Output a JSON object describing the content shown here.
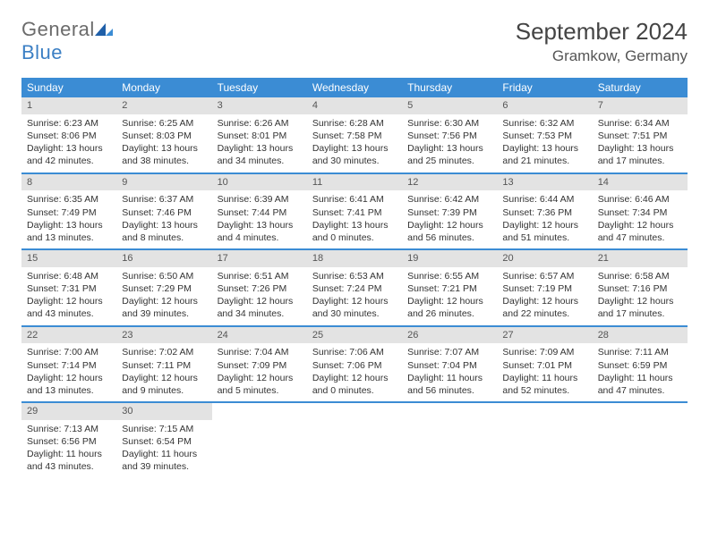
{
  "brand": {
    "name1": "General",
    "name2": "Blue"
  },
  "title": "September 2024",
  "location": "Gramkow, Germany",
  "colors": {
    "header_bg": "#3b8cd4",
    "header_text": "#ffffff",
    "daynum_bg": "#e3e3e3",
    "week_border": "#3b8cd4",
    "logo_accent": "#3b7fc4",
    "logo_gray": "#6b6b6b",
    "page_bg": "#ffffff"
  },
  "daynames": [
    "Sunday",
    "Monday",
    "Tuesday",
    "Wednesday",
    "Thursday",
    "Friday",
    "Saturday"
  ],
  "weeks": [
    [
      {
        "n": "1",
        "sr": "6:23 AM",
        "ss": "8:06 PM",
        "dl": "13 hours and 42 minutes."
      },
      {
        "n": "2",
        "sr": "6:25 AM",
        "ss": "8:03 PM",
        "dl": "13 hours and 38 minutes."
      },
      {
        "n": "3",
        "sr": "6:26 AM",
        "ss": "8:01 PM",
        "dl": "13 hours and 34 minutes."
      },
      {
        "n": "4",
        "sr": "6:28 AM",
        "ss": "7:58 PM",
        "dl": "13 hours and 30 minutes."
      },
      {
        "n": "5",
        "sr": "6:30 AM",
        "ss": "7:56 PM",
        "dl": "13 hours and 25 minutes."
      },
      {
        "n": "6",
        "sr": "6:32 AM",
        "ss": "7:53 PM",
        "dl": "13 hours and 21 minutes."
      },
      {
        "n": "7",
        "sr": "6:34 AM",
        "ss": "7:51 PM",
        "dl": "13 hours and 17 minutes."
      }
    ],
    [
      {
        "n": "8",
        "sr": "6:35 AM",
        "ss": "7:49 PM",
        "dl": "13 hours and 13 minutes."
      },
      {
        "n": "9",
        "sr": "6:37 AM",
        "ss": "7:46 PM",
        "dl": "13 hours and 8 minutes."
      },
      {
        "n": "10",
        "sr": "6:39 AM",
        "ss": "7:44 PM",
        "dl": "13 hours and 4 minutes."
      },
      {
        "n": "11",
        "sr": "6:41 AM",
        "ss": "7:41 PM",
        "dl": "13 hours and 0 minutes."
      },
      {
        "n": "12",
        "sr": "6:42 AM",
        "ss": "7:39 PM",
        "dl": "12 hours and 56 minutes."
      },
      {
        "n": "13",
        "sr": "6:44 AM",
        "ss": "7:36 PM",
        "dl": "12 hours and 51 minutes."
      },
      {
        "n": "14",
        "sr": "6:46 AM",
        "ss": "7:34 PM",
        "dl": "12 hours and 47 minutes."
      }
    ],
    [
      {
        "n": "15",
        "sr": "6:48 AM",
        "ss": "7:31 PM",
        "dl": "12 hours and 43 minutes."
      },
      {
        "n": "16",
        "sr": "6:50 AM",
        "ss": "7:29 PM",
        "dl": "12 hours and 39 minutes."
      },
      {
        "n": "17",
        "sr": "6:51 AM",
        "ss": "7:26 PM",
        "dl": "12 hours and 34 minutes."
      },
      {
        "n": "18",
        "sr": "6:53 AM",
        "ss": "7:24 PM",
        "dl": "12 hours and 30 minutes."
      },
      {
        "n": "19",
        "sr": "6:55 AM",
        "ss": "7:21 PM",
        "dl": "12 hours and 26 minutes."
      },
      {
        "n": "20",
        "sr": "6:57 AM",
        "ss": "7:19 PM",
        "dl": "12 hours and 22 minutes."
      },
      {
        "n": "21",
        "sr": "6:58 AM",
        "ss": "7:16 PM",
        "dl": "12 hours and 17 minutes."
      }
    ],
    [
      {
        "n": "22",
        "sr": "7:00 AM",
        "ss": "7:14 PM",
        "dl": "12 hours and 13 minutes."
      },
      {
        "n": "23",
        "sr": "7:02 AM",
        "ss": "7:11 PM",
        "dl": "12 hours and 9 minutes."
      },
      {
        "n": "24",
        "sr": "7:04 AM",
        "ss": "7:09 PM",
        "dl": "12 hours and 5 minutes."
      },
      {
        "n": "25",
        "sr": "7:06 AM",
        "ss": "7:06 PM",
        "dl": "12 hours and 0 minutes."
      },
      {
        "n": "26",
        "sr": "7:07 AM",
        "ss": "7:04 PM",
        "dl": "11 hours and 56 minutes."
      },
      {
        "n": "27",
        "sr": "7:09 AM",
        "ss": "7:01 PM",
        "dl": "11 hours and 52 minutes."
      },
      {
        "n": "28",
        "sr": "7:11 AM",
        "ss": "6:59 PM",
        "dl": "11 hours and 47 minutes."
      }
    ],
    [
      {
        "n": "29",
        "sr": "7:13 AM",
        "ss": "6:56 PM",
        "dl": "11 hours and 43 minutes."
      },
      {
        "n": "30",
        "sr": "7:15 AM",
        "ss": "6:54 PM",
        "dl": "11 hours and 39 minutes."
      },
      null,
      null,
      null,
      null,
      null
    ]
  ],
  "labels": {
    "sunrise": "Sunrise: ",
    "sunset": "Sunset: ",
    "daylight": "Daylight: "
  }
}
